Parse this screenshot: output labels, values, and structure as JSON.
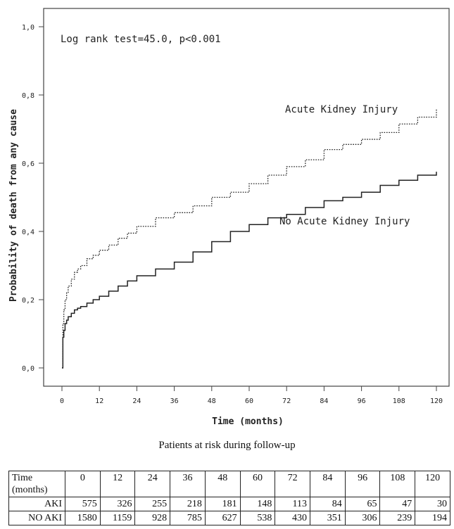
{
  "chart_data": {
    "type": "line",
    "step": true,
    "annotation": "Log rank test=45.0, p<0.001",
    "xlabel": "Time (months)",
    "ylabel": "Probability of death from any cause",
    "xlim": [
      0,
      120
    ],
    "ylim": [
      0,
      1
    ],
    "xticks": [
      0,
      12,
      24,
      36,
      48,
      60,
      72,
      84,
      96,
      108,
      120
    ],
    "xtick_labels": [
      "0",
      "12",
      "24",
      "36",
      "48",
      "60",
      "72",
      "84",
      "96",
      "108",
      "120"
    ],
    "yticks": [
      0,
      0.2,
      0.4,
      0.6,
      0.8,
      1.0
    ],
    "ytick_labels": [
      "0,0",
      "0,2",
      "0,4",
      "0,6",
      "0,8",
      "1,0"
    ],
    "grid": false,
    "series": [
      {
        "name": "Acute Kidney Injury",
        "line_style": "dotted",
        "x": [
          0,
          0.3,
          0.6,
          1,
          1.5,
          2,
          3,
          4,
          5,
          6,
          8,
          10,
          12,
          15,
          18,
          21,
          24,
          30,
          36,
          42,
          48,
          54,
          60,
          66,
          72,
          78,
          84,
          90,
          96,
          102,
          108,
          114,
          120
        ],
        "y": [
          0,
          0.13,
          0.17,
          0.2,
          0.22,
          0.24,
          0.26,
          0.28,
          0.29,
          0.3,
          0.32,
          0.33,
          0.345,
          0.36,
          0.38,
          0.395,
          0.415,
          0.44,
          0.455,
          0.475,
          0.5,
          0.515,
          0.54,
          0.565,
          0.59,
          0.61,
          0.64,
          0.655,
          0.67,
          0.69,
          0.715,
          0.735,
          0.76
        ]
      },
      {
        "name": "No Acute Kidney Injury",
        "line_style": "solid",
        "x": [
          0,
          0.3,
          0.6,
          1,
          1.5,
          2,
          3,
          4,
          5,
          6,
          8,
          10,
          12,
          15,
          18,
          21,
          24,
          30,
          36,
          42,
          48,
          54,
          60,
          66,
          72,
          78,
          84,
          90,
          96,
          102,
          108,
          114,
          120
        ],
        "y": [
          0,
          0.09,
          0.11,
          0.13,
          0.14,
          0.15,
          0.16,
          0.17,
          0.175,
          0.18,
          0.19,
          0.2,
          0.21,
          0.225,
          0.24,
          0.255,
          0.27,
          0.29,
          0.31,
          0.34,
          0.37,
          0.4,
          0.42,
          0.44,
          0.45,
          0.47,
          0.49,
          0.5,
          0.515,
          0.535,
          0.55,
          0.565,
          0.575
        ]
      }
    ]
  },
  "risk_table": {
    "caption": "Patients at risk during follow-up",
    "time_label_line1": "Time",
    "time_label_line2": "(months)",
    "times": [
      "0",
      "12",
      "24",
      "36",
      "48",
      "60",
      "72",
      "84",
      "96",
      "108",
      "120"
    ],
    "rows": [
      {
        "label": "AKI",
        "values": [
          "575",
          "326",
          "255",
          "218",
          "181",
          "148",
          "113",
          "84",
          "65",
          "47",
          "30"
        ]
      },
      {
        "label": "NO AKI",
        "values": [
          "1580",
          "1159",
          "928",
          "785",
          "627",
          "538",
          "430",
          "351",
          "306",
          "239",
          "194"
        ]
      }
    ]
  }
}
